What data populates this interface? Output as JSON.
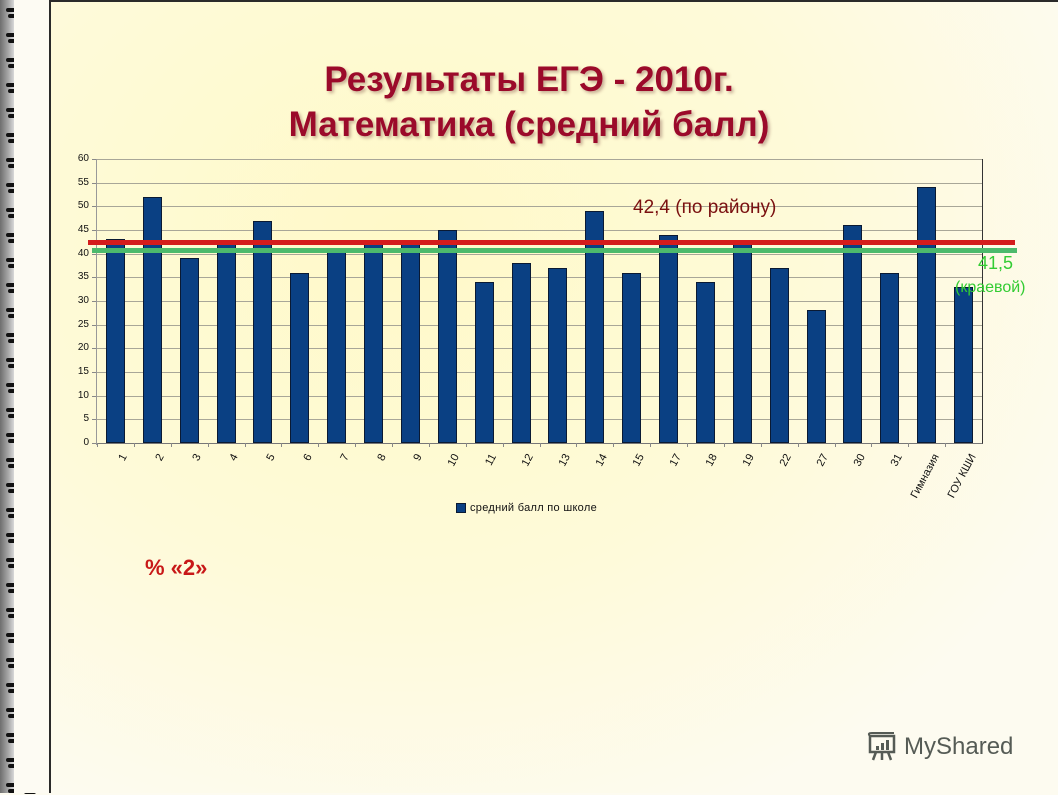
{
  "title": {
    "line1": "Результаты ЕГЭ - 2010г.",
    "line2": "Математика (средний балл)"
  },
  "reference_lines": {
    "district": {
      "value": 42.4,
      "label": "42,4 (по району)",
      "color": "#d41c1c"
    },
    "regional": {
      "value": 41.5,
      "label_value": "41,5",
      "label_sub": "(краевой)",
      "color": "#4cba6c"
    }
  },
  "legend": {
    "series_label": "средний балл по школе",
    "swatch_color": "#0a4083"
  },
  "note": "% «2»",
  "watermark": {
    "text": "MyShared",
    "icon": "presentation-board-icon"
  },
  "chart_data": {
    "type": "bar",
    "title": "Результаты ЕГЭ - 2010г. Математика (средний балл)",
    "xlabel": "",
    "ylabel": "",
    "ylim": [
      0,
      60
    ],
    "yticks": [
      0,
      5,
      10,
      15,
      20,
      25,
      30,
      35,
      40,
      45,
      50,
      55,
      60
    ],
    "grid": true,
    "legend_position": "bottom",
    "categories": [
      "1",
      "2",
      "3",
      "4",
      "5",
      "6",
      "7",
      "8",
      "9",
      "10",
      "11",
      "12",
      "13",
      "14",
      "15",
      "17",
      "18",
      "19",
      "22",
      "27",
      "30",
      "31",
      "Гимназия",
      "ГОУ КШИ"
    ],
    "series": [
      {
        "name": "средний балл по школе",
        "color": "#0a4083",
        "values": [
          43,
          52,
          39,
          42,
          47,
          36,
          41,
          42,
          42,
          45,
          34,
          38,
          37,
          49,
          36,
          44,
          34,
          42,
          37,
          28,
          46,
          36,
          54,
          33
        ]
      }
    ],
    "annotations": [
      {
        "type": "hline",
        "y": 42.4,
        "label": "42,4 (по району)",
        "color": "#d41c1c"
      },
      {
        "type": "hline",
        "y": 41.5,
        "label": "41,5 (краевой)",
        "color": "#4cba6c"
      }
    ]
  }
}
